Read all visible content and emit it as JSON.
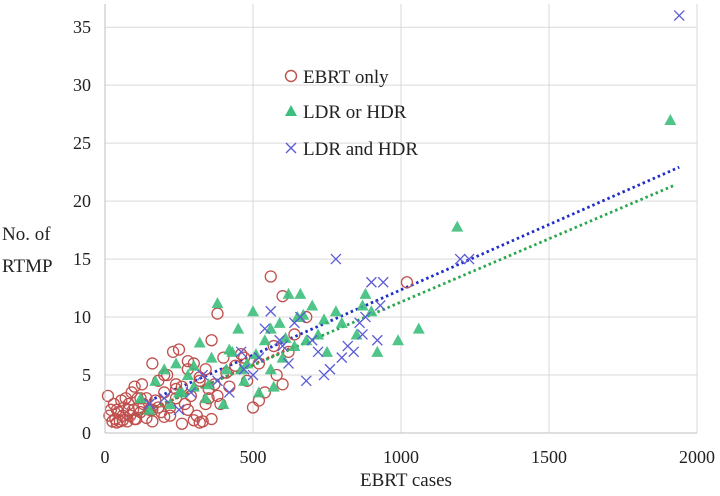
{
  "chart_data": {
    "type": "scatter",
    "title": "",
    "xlabel": "EBRT cases",
    "ylabel": "No. of RTMP",
    "ylabel_lines": [
      "No. of",
      "RTMP"
    ],
    "xlim": [
      0,
      2000
    ],
    "ylim": [
      0,
      37
    ],
    "xticks": [
      0,
      500,
      1000,
      1500,
      2000
    ],
    "yticks": [
      0,
      5,
      10,
      15,
      20,
      25,
      30,
      35
    ],
    "grid": true,
    "legend_position": "upper-left-center",
    "series": [
      {
        "name": "EBRT only",
        "marker": "circle-open",
        "color": "#c0504d",
        "trend_color": "#c0504d",
        "trend": {
          "slope": 0.0112,
          "intercept": 0.3,
          "x_range": [
            20,
            650
          ]
        },
        "x": [
          10,
          15,
          20,
          25,
          30,
          35,
          40,
          45,
          50,
          55,
          60,
          65,
          70,
          75,
          80,
          85,
          90,
          95,
          100,
          105,
          110,
          115,
          120,
          125,
          130,
          140,
          150,
          160,
          170,
          180,
          190,
          200,
          210,
          220,
          230,
          240,
          250,
          260,
          270,
          280,
          290,
          300,
          310,
          320,
          330,
          340,
          350,
          360,
          370,
          380,
          390,
          400,
          420,
          440,
          460,
          480,
          500,
          520,
          540,
          560,
          580,
          600,
          620,
          640,
          1020,
          40,
          60,
          80,
          100,
          120,
          140,
          160,
          180,
          200,
          220,
          240,
          260,
          280,
          300,
          320,
          340,
          360,
          380,
          160,
          200,
          240,
          280,
          320,
          350,
          410,
          470,
          520,
          570,
          600,
          680
        ],
        "y": [
          3.2,
          1.5,
          2.0,
          1.0,
          2.5,
          1.2,
          2.0,
          1.8,
          1.0,
          2.8,
          1.5,
          2.2,
          3.0,
          1.0,
          2.5,
          1.5,
          3.5,
          2.0,
          4.0,
          1.2,
          3.0,
          2.2,
          1.8,
          4.2,
          2.5,
          3.0,
          2.0,
          6.0,
          2.8,
          4.5,
          1.8,
          3.5,
          5.0,
          2.2,
          7.0,
          3.0,
          7.2,
          4.0,
          2.5,
          5.5,
          3.2,
          6.0,
          1.5,
          4.8,
          1.0,
          5.5,
          3.0,
          8.0,
          4.2,
          10.3,
          2.5,
          6.5,
          4.0,
          5.8,
          6.8,
          4.5,
          2.2,
          6.0,
          3.5,
          13.5,
          5.0,
          11.8,
          7.0,
          8.5,
          13.0,
          0.9,
          1.1,
          2.0,
          1.2,
          3.0,
          1.3,
          1.0,
          2.2,
          1.4,
          1.5,
          3.8,
          0.8,
          2.0,
          1.1,
          0.9,
          2.5,
          1.2,
          3.2,
          2.0,
          5.0,
          4.2,
          6.2,
          4.5,
          3.8,
          5.2,
          6.5,
          2.8,
          7.5,
          4.2,
          10.0
        ]
      },
      {
        "name": "LDR or HDR",
        "marker": "triangle",
        "color": "#3dbf7c",
        "trend_color": "#2aa74e",
        "trend": {
          "slope": 0.0109,
          "intercept": 0.4,
          "x_range": [
            100,
            1920
          ]
        },
        "x": [
          120,
          150,
          170,
          200,
          220,
          240,
          260,
          280,
          300,
          320,
          340,
          360,
          380,
          400,
          410,
          430,
          450,
          470,
          480,
          500,
          520,
          540,
          560,
          570,
          590,
          600,
          620,
          640,
          650,
          660,
          680,
          700,
          720,
          750,
          780,
          800,
          850,
          880,
          900,
          920,
          990,
          1060,
          1190,
          1910,
          250,
          300,
          350,
          420,
          460,
          510,
          560,
          610,
          670,
          740,
          870
        ],
        "y": [
          3.0,
          2.0,
          4.5,
          5.5,
          2.5,
          6.0,
          3.5,
          5.0,
          4.0,
          7.8,
          3.0,
          6.5,
          11.2,
          2.5,
          5.5,
          7.0,
          9.0,
          4.5,
          6.0,
          10.5,
          3.5,
          8.0,
          5.5,
          4.0,
          9.5,
          6.5,
          12.0,
          7.5,
          10.0,
          12.0,
          8.0,
          11.0,
          8.5,
          7.0,
          10.5,
          9.5,
          8.5,
          12.0,
          10.5,
          7.0,
          8.0,
          9.0,
          17.8,
          27.0,
          3.5,
          5.8,
          4.2,
          7.2,
          5.5,
          6.8,
          9.0,
          8.2,
          10.2,
          9.8,
          11.0
        ]
      },
      {
        "name": "LDR and HDR",
        "marker": "x",
        "color": "#5b5bd6",
        "trend_color": "#1f2fc7",
        "trend": {
          "slope": 0.01125,
          "intercept": 1.1,
          "x_range": [
            150,
            1940
          ]
        },
        "x": [
          150,
          200,
          250,
          290,
          330,
          380,
          420,
          460,
          470,
          500,
          520,
          540,
          560,
          590,
          620,
          640,
          660,
          700,
          720,
          760,
          780,
          820,
          840,
          860,
          880,
          900,
          920,
          940,
          1200,
          1230,
          1940,
          600,
          680,
          740,
          800,
          870,
          930
        ],
        "y": [
          2.5,
          3.0,
          2.0,
          3.5,
          5.0,
          4.5,
          3.5,
          7.0,
          5.5,
          5.0,
          6.5,
          9.0,
          10.5,
          8.0,
          6.0,
          9.5,
          10.0,
          8.0,
          7.0,
          5.5,
          15.0,
          7.5,
          7.0,
          9.5,
          10.0,
          13.0,
          8.0,
          13.0,
          15.0,
          15.0,
          36.0,
          7.5,
          4.5,
          5.0,
          6.5,
          8.5,
          11.0
        ]
      }
    ]
  }
}
